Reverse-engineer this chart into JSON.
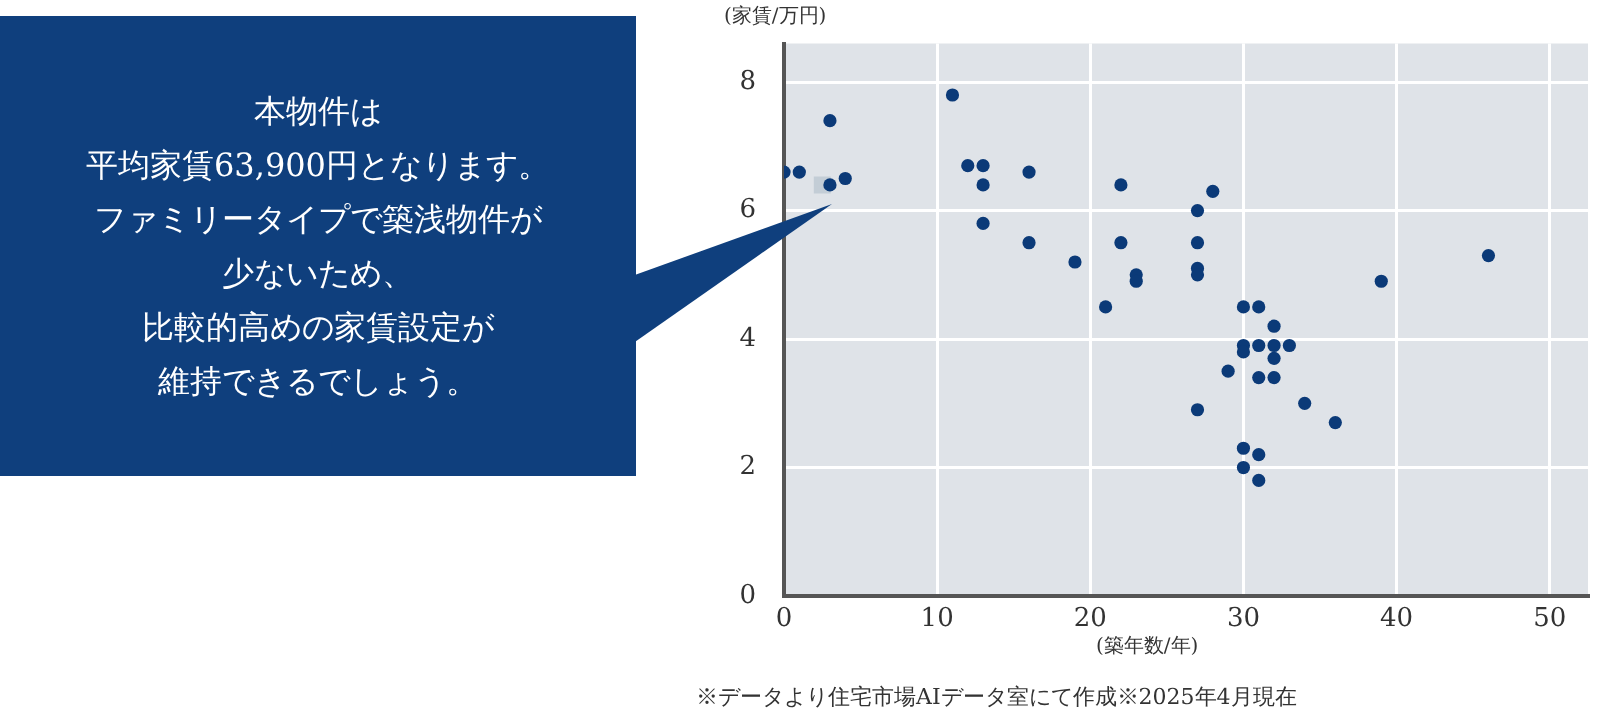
{
  "chart_data": {
    "type": "scatter",
    "xlabel": "(築年数/年)",
    "ylabel": "(家賃/万円)",
    "xlim": [
      0,
      52.5
    ],
    "ylim": [
      0,
      8.6
    ],
    "xticks": [
      0,
      10,
      20,
      30,
      40,
      50
    ],
    "yticks": [
      0,
      2,
      4,
      6,
      8
    ],
    "grid": true,
    "legend": false,
    "marker": "circle",
    "series": [
      {
        "color": "#0b3a78",
        "x": [
          0,
          1,
          3,
          3,
          4,
          11,
          12,
          13,
          13,
          13,
          16,
          16,
          19,
          21,
          22,
          22,
          23,
          23,
          27,
          28,
          27,
          27,
          27,
          30,
          31,
          32,
          30,
          31,
          32,
          33,
          30,
          32,
          29,
          31,
          32,
          27,
          34,
          36,
          30,
          31,
          30,
          31,
          39,
          46
        ],
        "values": [
          6.6,
          6.6,
          7.4,
          6.4,
          6.5,
          7.8,
          6.7,
          6.7,
          6.4,
          5.8,
          6.6,
          5.5,
          5.2,
          4.5,
          6.4,
          5.5,
          5.0,
          4.9,
          6.0,
          6.3,
          5.5,
          5.1,
          5.0,
          4.5,
          4.5,
          4.2,
          3.9,
          3.9,
          3.9,
          3.9,
          3.8,
          3.7,
          3.5,
          3.4,
          3.4,
          2.9,
          3.0,
          2.7,
          2.3,
          2.2,
          2.0,
          1.8,
          4.9,
          5.3
        ]
      },
      {
        "color": "#c3cdd6",
        "marker": "square",
        "x": [
          2.5
        ],
        "values": [
          6.4
        ]
      }
    ],
    "annotations": [
      "本物件は",
      "平均家賃63,900円となります。",
      "ファミリータイプで築浅物件が",
      "少ないため、",
      "比較的高めの家賃設定が",
      "維持できるでしょう。",
      "※データより住宅市場AIデータ室にて作成※2025年4月現在"
    ]
  }
}
